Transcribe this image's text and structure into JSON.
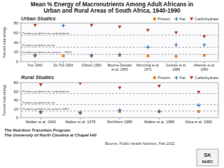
{
  "chart_data": [
    {
      "type": "scatter",
      "title": "Mean % Energy of Macronutrients Among Adult Africans in\nUrban and Rural Areas of South Africa, 1940-1990",
      "subtitle": "Urban Studies",
      "categories": [
        "Fox 1940",
        "Du Toit 1953",
        "Gibson 1950",
        "Bourne-Stewart\net al. 1955",
        "Monnong et al.\n1971",
        "Gericke et al.\n1988",
        "Albertse et al.\n1990"
      ],
      "series": [
        {
          "name": "Protein",
          "color": "#e6862e",
          "marker": "square",
          "values": [
            12,
            12,
            12,
            13,
            12,
            11,
            13
          ]
        },
        {
          "name": "Fat",
          "color": "#2b6cb0",
          "marker": "plus",
          "values": [
            13,
            75,
            13,
            15,
            30,
            35,
            35
          ]
        },
        {
          "name": "Carbohydrate",
          "color": "#c0392b",
          "marker": "triangle-down",
          "values": [
            75,
            null,
            75,
            72,
            65,
            60,
            52
          ]
        }
      ],
      "ylim": [
        0,
        80
      ],
      "yticks": [
        0,
        20,
        40,
        60,
        80
      ],
      "ylabel": "Percent total energy",
      "annotations": [
        {
          "y": 55,
          "text": "Prudent guideline for carbohydrate"
        },
        {
          "y": 30,
          "text": "Prudent guideline for fat"
        },
        {
          "y": 15,
          "text": "Prudent guideline for protein – WHO"
        }
      ],
      "grid": false,
      "legend": "top"
    },
    {
      "type": "scatter",
      "subtitle": "Rural Studies",
      "categories": [
        "Walker et al. 1940",
        "Walker et al. 1978",
        "DeVilliers 1985",
        "Walker et al. 1989",
        "Silva et al. 1990"
      ],
      "series": [
        {
          "name": "Protein",
          "color": "#e6862e",
          "marker": "square",
          "values": [
            12,
            11,
            14,
            14,
            14
          ]
        },
        {
          "name": "Fat",
          "color": "#2b6cb0",
          "marker": "plus",
          "values": [
            13,
            11,
            17,
            14,
            28
          ]
        },
        {
          "name": "Carbohydrate",
          "color": "#c0392b",
          "marker": "triangle-down",
          "values": [
            75,
            78,
            68,
            72,
            58
          ]
        }
      ],
      "ylim": [
        0,
        80
      ],
      "yticks": [
        0,
        20,
        40,
        60,
        80
      ],
      "ylabel": "Percent total energy",
      "annotations": [
        {
          "y": 55,
          "text": "Prudent guideline for carbohydrate"
        },
        {
          "y": 30,
          "text": "Prudent guideline for fat"
        },
        {
          "y": 15,
          "text": "Prudent guideline for protein WHO"
        }
      ],
      "grid": false,
      "legend": "top",
      "notes": [
        "The Nutrition Transition Program\nThe University of North Carolina at Chapel Hill",
        "Bourne, Public Health Nutrition, Feb 2002",
        "SK",
        "NHRC"
      ]
    }
  ]
}
